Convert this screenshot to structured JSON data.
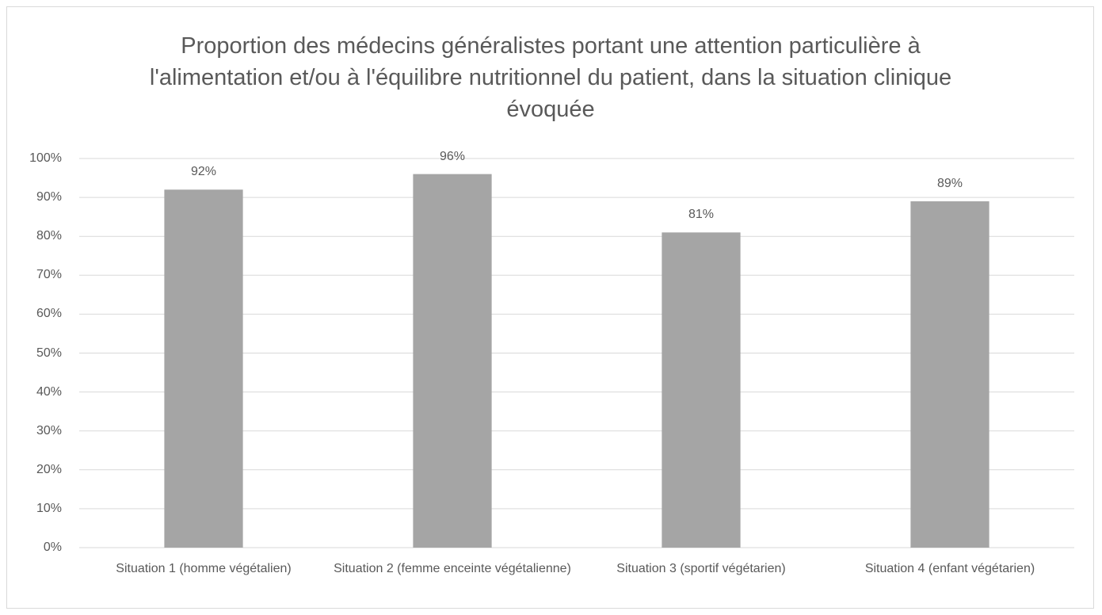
{
  "chart_data": {
    "type": "bar",
    "title": "Proportion des médecins généralistes portant une attention particulière à l'alimentation et/ou à l'équilibre nutritionnel du patient, dans la situation clinique évoquée",
    "categories": [
      "Situation 1 (homme végétalien)",
      "Situation 2 (femme enceinte végétalienne)",
      "Situation 3 (sportif végétarien)",
      "Situation 4 (enfant végétarien)"
    ],
    "values": [
      92,
      96,
      81,
      89
    ],
    "value_labels": [
      "92%",
      "96%",
      "81%",
      "89%"
    ],
    "color": "#a5a5a5",
    "ylim": [
      0,
      100
    ],
    "yticks": [
      {
        "value": 0,
        "label": "0%"
      },
      {
        "value": 10,
        "label": "10%"
      },
      {
        "value": 20,
        "label": "20%"
      },
      {
        "value": 30,
        "label": "30%"
      },
      {
        "value": 40,
        "label": "40%"
      },
      {
        "value": 50,
        "label": "50%"
      },
      {
        "value": 60,
        "label": "60%"
      },
      {
        "value": 70,
        "label": "70%"
      },
      {
        "value": 80,
        "label": "80%"
      },
      {
        "value": 90,
        "label": "90%"
      },
      {
        "value": 100,
        "label": "100%"
      }
    ],
    "grid": true
  }
}
